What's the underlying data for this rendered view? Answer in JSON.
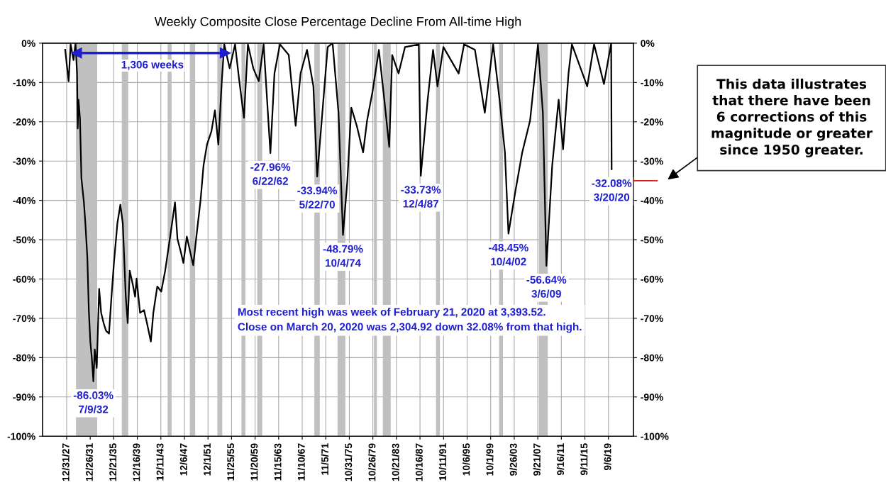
{
  "chart_data": {
    "type": "line",
    "title": "Weekly Composite Close Percentage Decline From All-time High",
    "xlim": [
      "1923-12-01",
      "2023-12-01"
    ],
    "xticks": [
      {
        "value": "1927-12-31",
        "label": "12/31/27"
      },
      {
        "value": "1931-12-26",
        "label": "12/26/31"
      },
      {
        "value": "1935-12-21",
        "label": "12/21/35"
      },
      {
        "value": "1939-12-16",
        "label": "12/16/39"
      },
      {
        "value": "1943-12-11",
        "label": "12/11/43"
      },
      {
        "value": "1947-12-06",
        "label": "12/6/47"
      },
      {
        "value": "1951-12-01",
        "label": "12/1/51"
      },
      {
        "value": "1955-11-25",
        "label": "11/25/55"
      },
      {
        "value": "1959-11-20",
        "label": "11/20/59"
      },
      {
        "value": "1963-11-15",
        "label": "11/15/63"
      },
      {
        "value": "1967-11-10",
        "label": "11/10/67"
      },
      {
        "value": "1971-11-05",
        "label": "11/5/71"
      },
      {
        "value": "1975-10-31",
        "label": "10/31/75"
      },
      {
        "value": "1979-10-26",
        "label": "10/26/79"
      },
      {
        "value": "1983-10-21",
        "label": "10/21/83"
      },
      {
        "value": "1987-10-16",
        "label": "10/16/87"
      },
      {
        "value": "1991-10-11",
        "label": "10/11/91"
      },
      {
        "value": "1995-10-06",
        "label": "10/6/95"
      },
      {
        "value": "1999-10-01",
        "label": "10/1/99"
      },
      {
        "value": "2003-09-26",
        "label": "9/26/03"
      },
      {
        "value": "2007-09-21",
        "label": "9/21/07"
      },
      {
        "value": "2011-09-16",
        "label": "9/16/11"
      },
      {
        "value": "2015-09-11",
        "label": "9/11/15"
      },
      {
        "value": "2019-09-06",
        "label": "9/6/19"
      }
    ],
    "ylim": [
      -100,
      0
    ],
    "yticks": [
      {
        "value": 0,
        "label": "0%"
      },
      {
        "value": -10,
        "label": "-10%"
      },
      {
        "value": -20,
        "label": "-20%"
      },
      {
        "value": -30,
        "label": "-30%"
      },
      {
        "value": -40,
        "label": "-40%"
      },
      {
        "value": -50,
        "label": "-50%"
      },
      {
        "value": -60,
        "label": "-60%"
      },
      {
        "value": -70,
        "label": "-70%"
      },
      {
        "value": -80,
        "label": "-80%"
      },
      {
        "value": -90,
        "label": "-90%"
      },
      {
        "value": -100,
        "label": "-100%"
      }
    ],
    "y2lim": [
      -100,
      0
    ],
    "y2ticks": [
      {
        "value": 0,
        "label": "0%"
      },
      {
        "value": -10,
        "label": "-10%"
      },
      {
        "value": -20,
        "label": "-20%"
      },
      {
        "value": -30,
        "label": "-30%"
      },
      {
        "value": -40,
        "label": "-40%"
      },
      {
        "value": -50,
        "label": "-50%"
      },
      {
        "value": -60,
        "label": "-60%"
      },
      {
        "value": -70,
        "label": "-70%"
      },
      {
        "value": -80,
        "label": "-80%"
      },
      {
        "value": -90,
        "label": "-90%"
      },
      {
        "value": -100,
        "label": "-100%"
      }
    ],
    "grid": true,
    "series": [
      {
        "color": "#000000",
        "x": [
          "1927-10",
          "1928-05",
          "1928-09",
          "1929-03",
          "1929-07",
          "1929-10-04",
          "1929-11-15",
          "1930-01",
          "1930-04",
          "1930-07",
          "1930-12",
          "1931-03",
          "1931-07",
          "1931-10",
          "1932-01",
          "1932-04",
          "1932-07-09",
          "1932-10",
          "1933-02",
          "1933-07",
          "1933-11",
          "1934-04",
          "1934-09",
          "1935-03",
          "1935-08",
          "1936-01",
          "1936-08",
          "1937-02",
          "1937-07",
          "1938-01",
          "1938-05",
          "1938-09",
          "1939-03",
          "1939-08",
          "1939-11",
          "1940-06",
          "1941-02",
          "1941-08",
          "1942-04",
          "1942-09",
          "1943-05",
          "1944-01",
          "1944-09",
          "1945-08",
          "1946-05",
          "1946-10",
          "1947-05",
          "1947-10",
          "1948-05",
          "1948-12",
          "1949-06",
          "1950-01",
          "1950-09",
          "1951-03",
          "1951-10",
          "1952-07",
          "1953-02",
          "1953-09",
          "1954-04",
          "1954-09",
          "1955-08",
          "1956-07",
          "1957-03",
          "1958-01",
          "1958-09",
          "1959-08",
          "1960-07",
          "1961-05",
          "1962-06-22",
          "1963-03",
          "1964-02",
          "1965-08",
          "1966-10",
          "1967-08",
          "1968-09",
          "1969-10",
          "1970-05-22",
          "1972-03",
          "1973-01",
          "1974-01",
          "1974-10-04",
          "1975-07",
          "1976-03",
          "1977-02",
          "1978-03",
          "1978-11",
          "1979-10",
          "1980-11",
          "1981-10",
          "1982-08",
          "1983-02",
          "1984-03",
          "1985-04",
          "1987-08",
          "1987-12-04",
          "1989-02",
          "1990-01",
          "1990-10",
          "1991-10",
          "1994-05",
          "1995-04",
          "1997-02",
          "1998-10",
          "2000-03",
          "2001-04",
          "2002-03",
          "2002-10-04",
          "2003-12",
          "2005-02",
          "2006-06",
          "2007-10",
          "2008-08",
          "2009-03-06",
          "2010-03",
          "2011-04",
          "2012-01",
          "2012-12",
          "2013-07",
          "2016-02",
          "2017-04",
          "2018-12",
          "2020-02-21",
          "2020-03-20"
        ],
        "values": [
          -1.7,
          -9.7,
          -0.3,
          -4.3,
          0,
          -7.7,
          -21.7,
          -14.4,
          -19,
          -34.4,
          -40.5,
          -45.8,
          -54.5,
          -67.9,
          -75.9,
          -80,
          -86.03,
          -77.9,
          -82.6,
          -62.5,
          -68.6,
          -71.2,
          -73.2,
          -73.9,
          -64.5,
          -55.9,
          -45.8,
          -41.1,
          -45.8,
          -64.5,
          -71.2,
          -57.9,
          -61.2,
          -64.5,
          -59.9,
          -68.6,
          -67.9,
          -71.2,
          -75.9,
          -68.6,
          -61.9,
          -63.2,
          -57.9,
          -48.5,
          -40.5,
          -49.8,
          -53.2,
          -55.9,
          -49.2,
          -53.2,
          -56.5,
          -48.5,
          -39.8,
          -31.1,
          -25.8,
          -22.4,
          -17.1,
          -25.8,
          -9.7,
          -0.3,
          -6.4,
          -0.3,
          -9,
          -19,
          -0.3,
          -6.4,
          -9.7,
          -0.3,
          -27.96,
          -7.7,
          -0.3,
          -3,
          -21,
          -7.7,
          -1.7,
          -11,
          -33.94,
          -1,
          0,
          -17.7,
          -48.79,
          -35,
          -16.4,
          -21,
          -27.8,
          -19.7,
          -12.4,
          -1.7,
          -14.4,
          -26.4,
          -3,
          -7.7,
          -1,
          -0.3,
          -33.73,
          -14.4,
          -1.7,
          -11,
          -1,
          -7.7,
          -0.3,
          -1.7,
          -17.7,
          -0.3,
          -14.4,
          -27.8,
          -48.45,
          -37.8,
          -27.8,
          -19.7,
          -0.3,
          -17.7,
          -56.64,
          -31.1,
          -14.4,
          -27,
          -7.7,
          -0.3,
          -11,
          -0.3,
          -10.4,
          0,
          -32.08
        ]
      },
      {
        "color": "#1f1fd0",
        "marker": "triangle",
        "x": [
          "1929-09-01",
          "1954-11-01"
        ],
        "values": [
          -2.5,
          -2.5
        ]
      }
    ],
    "bands": [
      {
        "axis": "x",
        "from": "1929-08-01",
        "to": "1933-03-01",
        "color": "#c0c0c0"
      },
      {
        "axis": "x",
        "from": "1937-05-01",
        "to": "1938-06-01",
        "color": "#c0c0c0"
      },
      {
        "axis": "x",
        "from": "1945-02-01",
        "to": "1945-10-01",
        "color": "#c0c0c0"
      },
      {
        "axis": "x",
        "from": "1948-11-01",
        "to": "1949-10-01",
        "color": "#c0c0c0"
      },
      {
        "axis": "x",
        "from": "1953-07-01",
        "to": "1954-05-01",
        "color": "#c0c0c0"
      },
      {
        "axis": "x",
        "from": "1957-08-01",
        "to": "1958-04-01",
        "color": "#c0c0c0"
      },
      {
        "axis": "x",
        "from": "1960-04-01",
        "to": "1961-02-01",
        "color": "#c0c0c0"
      },
      {
        "axis": "x",
        "from": "1969-12-01",
        "to": "1970-11-01",
        "color": "#c0c0c0"
      },
      {
        "axis": "x",
        "from": "1973-11-01",
        "to": "1975-03-01",
        "color": "#c0c0c0"
      },
      {
        "axis": "x",
        "from": "1980-01-01",
        "to": "1980-07-01",
        "color": "#c0c0c0"
      },
      {
        "axis": "x",
        "from": "1981-07-01",
        "to": "1982-11-01",
        "color": "#c0c0c0"
      },
      {
        "axis": "x",
        "from": "1990-07-01",
        "to": "1991-03-01",
        "color": "#c0c0c0"
      },
      {
        "axis": "x",
        "from": "2001-03-01",
        "to": "2001-11-01",
        "color": "#c0c0c0"
      },
      {
        "axis": "x",
        "from": "2007-12-01",
        "to": "2009-06-01",
        "color": "#c0c0c0"
      }
    ],
    "annotations": [
      "1,306 weeks",
      {
        "text": "-86.03%\n7/9/32",
        "x": "1932-07-09",
        "y": -86.03
      },
      {
        "text": "-27.96%\n6/22/62",
        "x": "1962-06-22",
        "y": -27.96
      },
      {
        "text": "-33.94%\n5/22/70",
        "x": "1970-05-22",
        "y": -33.94
      },
      {
        "text": "-48.79%\n10/4/74",
        "x": "1974-10-04",
        "y": -48.79
      },
      {
        "text": "-33.73%\n12/4/87",
        "x": "1987-12-04",
        "y": -33.73
      },
      {
        "text": "-48.45%\n10/4/02",
        "x": "2002-10-04",
        "y": -48.45
      },
      {
        "text": "-56.64%\n3/6/09",
        "x": "2009-03-06",
        "y": -56.64
      },
      {
        "text": "-32.08%\n3/20/20",
        "x": "2020-03-20",
        "y": -32.08
      },
      "Most recent high was week of February 21, 2020 at 3,393.52.\nClose on March 20, 2020 was 2,304.92 down 32.08% from that high.",
      "This data illustrates\nthat there have been\n6 corrections of this\nmagnitude or greater\nsince 1950 greater."
    ]
  }
}
